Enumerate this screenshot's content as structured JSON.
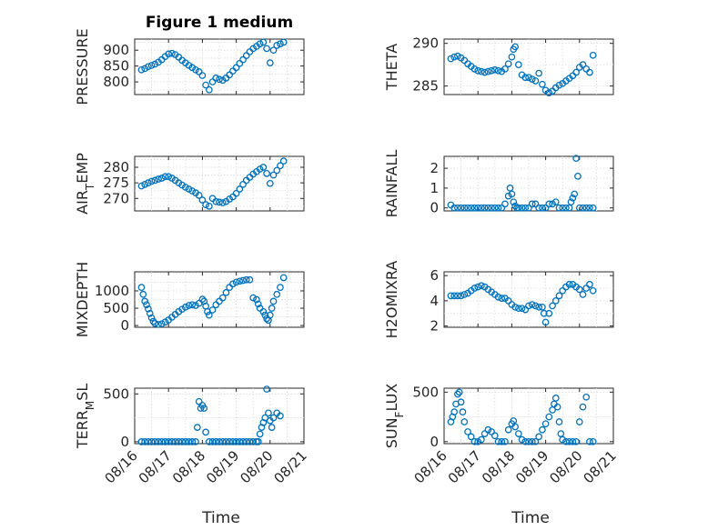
{
  "figure": {
    "title": "Figure 1 medium",
    "marker_color": "#0072BD",
    "x_ticks": [
      "08/16",
      "08/17",
      "08/18",
      "08/19",
      "08/20",
      "08/21"
    ],
    "x_label": "Time"
  },
  "chart_data": [
    {
      "type": "scatter",
      "id": "pressure",
      "ylabel": "PRESSURE",
      "xlabel": "",
      "title": "Figure 1 medium",
      "yticks": [
        800,
        850,
        900
      ],
      "ylim": [
        760,
        935
      ],
      "xlim": [
        0,
        5
      ],
      "show_xticklabels": false,
      "x": [
        0.2,
        0.3,
        0.4,
        0.5,
        0.6,
        0.7,
        0.8,
        0.9,
        1.0,
        1.1,
        1.2,
        1.3,
        1.4,
        1.5,
        1.6,
        1.7,
        1.8,
        1.9,
        2.0,
        2.1,
        2.2,
        2.3,
        2.4,
        2.5,
        2.6,
        2.7,
        2.8,
        2.9,
        3.0,
        3.1,
        3.2,
        3.3,
        3.4,
        3.5,
        3.6,
        3.7,
        3.8,
        3.9,
        4.0,
        4.1,
        4.2,
        4.3,
        4.4
      ],
      "y": [
        838,
        842,
        848,
        852,
        856,
        862,
        870,
        880,
        888,
        890,
        886,
        878,
        868,
        860,
        852,
        845,
        838,
        832,
        820,
        790,
        775,
        800,
        812,
        808,
        805,
        812,
        822,
        834,
        845,
        858,
        870,
        883,
        895,
        905,
        912,
        920,
        925,
        905,
        860,
        900,
        915,
        920,
        925
      ]
    },
    {
      "type": "scatter",
      "id": "theta",
      "ylabel": "THETA",
      "xlabel": "",
      "yticks": [
        285,
        290
      ],
      "ylim": [
        284,
        290.5
      ],
      "xlim": [
        0,
        5
      ],
      "show_xticklabels": false,
      "x": [
        0.2,
        0.3,
        0.4,
        0.5,
        0.6,
        0.7,
        0.8,
        0.9,
        1.0,
        1.1,
        1.2,
        1.3,
        1.4,
        1.5,
        1.6,
        1.7,
        1.8,
        1.9,
        2.0,
        2.05,
        2.1,
        2.2,
        2.3,
        2.4,
        2.5,
        2.6,
        2.7,
        2.8,
        2.9,
        3.0,
        3.1,
        3.2,
        3.3,
        3.4,
        3.5,
        3.6,
        3.7,
        3.8,
        3.9,
        4.0,
        4.1,
        4.2,
        4.3,
        4.4
      ],
      "y": [
        288.2,
        288.4,
        288.5,
        288.3,
        288.0,
        287.6,
        287.3,
        287.0,
        286.8,
        286.7,
        286.6,
        286.7,
        286.8,
        286.9,
        286.8,
        286.7,
        287.0,
        287.6,
        288.4,
        289.3,
        289.6,
        287.5,
        286.3,
        286.0,
        286.0,
        285.8,
        285.6,
        286.5,
        285.2,
        284.5,
        284.2,
        284.4,
        284.8,
        285.1,
        285.3,
        285.6,
        285.9,
        286.2,
        286.6,
        287.2,
        287.5,
        287.0,
        286.6,
        288.6
      ]
    },
    {
      "type": "scatter",
      "id": "air_temp",
      "ylabel": "AIR_TEMP",
      "xlabel": "",
      "yticks": [
        270,
        275,
        280
      ],
      "ylim": [
        266,
        283.5
      ],
      "xlim": [
        0,
        5
      ],
      "show_xticklabels": false,
      "x": [
        0.2,
        0.3,
        0.4,
        0.5,
        0.6,
        0.7,
        0.8,
        0.9,
        1.0,
        1.1,
        1.2,
        1.3,
        1.4,
        1.5,
        1.6,
        1.7,
        1.8,
        1.9,
        2.0,
        2.1,
        2.2,
        2.3,
        2.4,
        2.5,
        2.6,
        2.7,
        2.8,
        2.9,
        3.0,
        3.1,
        3.2,
        3.3,
        3.4,
        3.5,
        3.6,
        3.7,
        3.8,
        3.9,
        4.0,
        4.1,
        4.2,
        4.3,
        4.4
      ],
      "y": [
        274.0,
        274.5,
        275.0,
        275.5,
        275.8,
        276.2,
        276.5,
        277.0,
        277.0,
        276.5,
        275.8,
        275.0,
        274.3,
        273.6,
        273.0,
        272.4,
        271.8,
        271.0,
        269.5,
        268.0,
        267.5,
        270.0,
        269.0,
        268.8,
        268.6,
        269.0,
        269.8,
        270.5,
        271.6,
        273.0,
        274.5,
        275.8,
        276.8,
        277.8,
        278.6,
        279.4,
        280.0,
        278.0,
        274.8,
        277.5,
        279.0,
        280.5,
        282.0
      ]
    },
    {
      "type": "scatter",
      "id": "rainfall",
      "ylabel": "RAINFALL",
      "xlabel": "",
      "yticks": [
        0,
        1,
        2
      ],
      "ylim": [
        -0.15,
        2.6
      ],
      "xlim": [
        0,
        5
      ],
      "show_xticklabels": false,
      "x": [
        0.2,
        0.3,
        0.4,
        0.5,
        0.6,
        0.7,
        0.8,
        0.9,
        1.0,
        1.1,
        1.2,
        1.3,
        1.4,
        1.5,
        1.6,
        1.7,
        1.8,
        1.9,
        1.95,
        2.0,
        2.05,
        2.1,
        2.15,
        2.2,
        2.3,
        2.4,
        2.5,
        2.6,
        2.7,
        2.8,
        2.9,
        3.0,
        3.1,
        3.2,
        3.3,
        3.4,
        3.5,
        3.6,
        3.7,
        3.75,
        3.8,
        3.85,
        3.9,
        3.95,
        4.0,
        4.1,
        4.2,
        4.3,
        4.4
      ],
      "y": [
        0.15,
        0,
        0,
        0,
        0,
        0,
        0,
        0,
        0,
        0,
        0,
        0,
        0,
        0,
        0,
        0,
        0.2,
        0.6,
        1.0,
        0.7,
        0.3,
        0.1,
        0,
        0,
        0,
        0,
        0,
        0.2,
        0.2,
        0,
        0,
        0,
        0.2,
        0.2,
        0.3,
        0,
        0,
        0,
        0,
        0.3,
        0.5,
        0.7,
        2.5,
        1.6,
        0,
        0,
        0,
        0,
        0
      ]
    },
    {
      "type": "scatter",
      "id": "mixdepth",
      "ylabel": "MIXDEPTH",
      "xlabel": "",
      "yticks": [
        0,
        500,
        1000
      ],
      "ylim": [
        -50,
        1550
      ],
      "xlim": [
        0,
        5
      ],
      "show_xticklabels": false,
      "x": [
        0.2,
        0.25,
        0.3,
        0.35,
        0.4,
        0.45,
        0.5,
        0.55,
        0.6,
        0.7,
        0.8,
        0.9,
        1.0,
        1.1,
        1.2,
        1.3,
        1.4,
        1.5,
        1.6,
        1.7,
        1.8,
        1.9,
        2.0,
        2.05,
        2.1,
        2.15,
        2.2,
        2.3,
        2.4,
        2.5,
        2.6,
        2.7,
        2.8,
        2.9,
        3.0,
        3.1,
        3.2,
        3.3,
        3.4,
        3.5,
        3.6,
        3.65,
        3.7,
        3.8,
        3.85,
        3.9,
        3.95,
        4.0,
        4.05,
        4.1,
        4.2,
        4.3,
        4.4
      ],
      "y": [
        1100,
        900,
        700,
        600,
        480,
        350,
        220,
        120,
        60,
        30,
        50,
        100,
        160,
        240,
        320,
        400,
        470,
        530,
        580,
        600,
        580,
        640,
        760,
        700,
        560,
        400,
        300,
        450,
        600,
        700,
        800,
        950,
        1100,
        1200,
        1250,
        1280,
        1300,
        1320,
        1320,
        800,
        750,
        620,
        500,
        400,
        300,
        200,
        150,
        300,
        500,
        700,
        900,
        1100,
        1380
      ]
    },
    {
      "type": "scatter",
      "id": "h2omixra",
      "ylabel": "H2OMIXRA",
      "xlabel": "",
      "yticks": [
        2,
        4,
        6
      ],
      "ylim": [
        1.9,
        6.3
      ],
      "xlim": [
        0,
        5
      ],
      "show_xticklabels": false,
      "x": [
        0.2,
        0.3,
        0.4,
        0.5,
        0.6,
        0.7,
        0.8,
        0.9,
        1.0,
        1.1,
        1.2,
        1.3,
        1.4,
        1.5,
        1.6,
        1.7,
        1.8,
        1.9,
        2.0,
        2.1,
        2.2,
        2.3,
        2.4,
        2.5,
        2.6,
        2.7,
        2.8,
        2.9,
        2.95,
        3.0,
        3.1,
        3.2,
        3.3,
        3.4,
        3.5,
        3.6,
        3.7,
        3.8,
        3.9,
        4.0,
        4.1,
        4.2,
        4.3,
        4.4
      ],
      "y": [
        4.4,
        4.4,
        4.4,
        4.4,
        4.5,
        4.6,
        4.8,
        5.0,
        5.1,
        5.2,
        5.1,
        4.9,
        4.7,
        4.5,
        4.3,
        4.2,
        4.2,
        4.0,
        3.7,
        3.5,
        3.4,
        3.4,
        3.3,
        3.6,
        3.7,
        3.6,
        3.5,
        3.5,
        3.0,
        2.3,
        3.0,
        3.6,
        4.0,
        4.4,
        4.8,
        5.1,
        5.3,
        5.3,
        5.1,
        4.9,
        4.5,
        5.0,
        5.3,
        4.8
      ]
    },
    {
      "type": "scatter",
      "id": "terr_msl",
      "ylabel": "TERR_MSL",
      "xlabel": "Time",
      "yticks": [
        0,
        500
      ],
      "ylim": [
        -20,
        560
      ],
      "xlim": [
        0,
        5
      ],
      "show_xticklabels": true,
      "x": [
        0.2,
        0.3,
        0.4,
        0.5,
        0.6,
        0.7,
        0.8,
        0.9,
        1.0,
        1.1,
        1.2,
        1.3,
        1.4,
        1.5,
        1.6,
        1.7,
        1.8,
        1.85,
        1.9,
        1.95,
        2.0,
        2.05,
        2.1,
        2.2,
        2.3,
        2.4,
        2.5,
        2.6,
        2.7,
        2.8,
        2.9,
        3.0,
        3.1,
        3.2,
        3.3,
        3.4,
        3.5,
        3.6,
        3.65,
        3.7,
        3.75,
        3.8,
        3.85,
        3.9,
        3.95,
        4.0,
        4.05,
        4.1,
        4.2,
        4.3
      ],
      "y": [
        0,
        0,
        0,
        0,
        0,
        0,
        0,
        0,
        0,
        0,
        0,
        0,
        0,
        0,
        0,
        0,
        0,
        150,
        420,
        350,
        380,
        350,
        100,
        0,
        0,
        0,
        0,
        0,
        0,
        0,
        0,
        0,
        0,
        0,
        0,
        0,
        0,
        0,
        0,
        80,
        150,
        200,
        250,
        550,
        300,
        220,
        150,
        250,
        300,
        270
      ]
    },
    {
      "type": "scatter",
      "id": "sun_flux",
      "ylabel": "SUN_FLUX",
      "xlabel": "Time",
      "yticks": [
        0,
        500
      ],
      "ylim": [
        -20,
        540
      ],
      "xlim": [
        0,
        5
      ],
      "show_xticklabels": true,
      "x": [
        0.2,
        0.25,
        0.3,
        0.35,
        0.4,
        0.45,
        0.5,
        0.55,
        0.6,
        0.7,
        0.8,
        0.9,
        1.0,
        1.1,
        1.2,
        1.3,
        1.4,
        1.5,
        1.6,
        1.7,
        1.8,
        1.9,
        2.0,
        2.05,
        2.1,
        2.2,
        2.3,
        2.4,
        2.5,
        2.6,
        2.7,
        2.8,
        2.9,
        3.0,
        3.1,
        3.2,
        3.25,
        3.3,
        3.35,
        3.4,
        3.45,
        3.5,
        3.6,
        3.7,
        3.8,
        3.9,
        4.0,
        4.1,
        4.2,
        4.3,
        4.4
      ],
      "y": [
        200,
        250,
        300,
        380,
        480,
        500,
        400,
        300,
        200,
        100,
        50,
        0,
        0,
        20,
        80,
        120,
        100,
        60,
        0,
        0,
        0,
        120,
        180,
        210,
        150,
        80,
        20,
        0,
        0,
        0,
        0,
        50,
        120,
        180,
        250,
        320,
        380,
        440,
        350,
        200,
        80,
        20,
        0,
        0,
        0,
        0,
        200,
        350,
        450,
        0,
        0
      ]
    }
  ]
}
